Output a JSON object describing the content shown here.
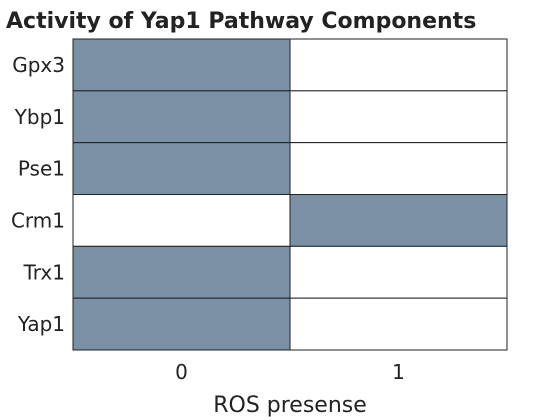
{
  "chart_data": {
    "type": "heatmap",
    "title": "Activity of Yap1 Pathway Components",
    "xlabel": "ROS presense",
    "ylabel": "",
    "x_categories": [
      "0",
      "1"
    ],
    "y_categories": [
      "Gpx3",
      "Ybp1",
      "Pse1",
      "Crm1",
      "Trx1",
      "Yap1"
    ],
    "values": [
      [
        1,
        0
      ],
      [
        1,
        0
      ],
      [
        1,
        0
      ],
      [
        0,
        1
      ],
      [
        1,
        0
      ],
      [
        1,
        0
      ]
    ],
    "grid": true,
    "legend": "none",
    "colors": {
      "active": "#7a91a5",
      "inactive": "#ffffff",
      "grid": "#222222"
    }
  }
}
